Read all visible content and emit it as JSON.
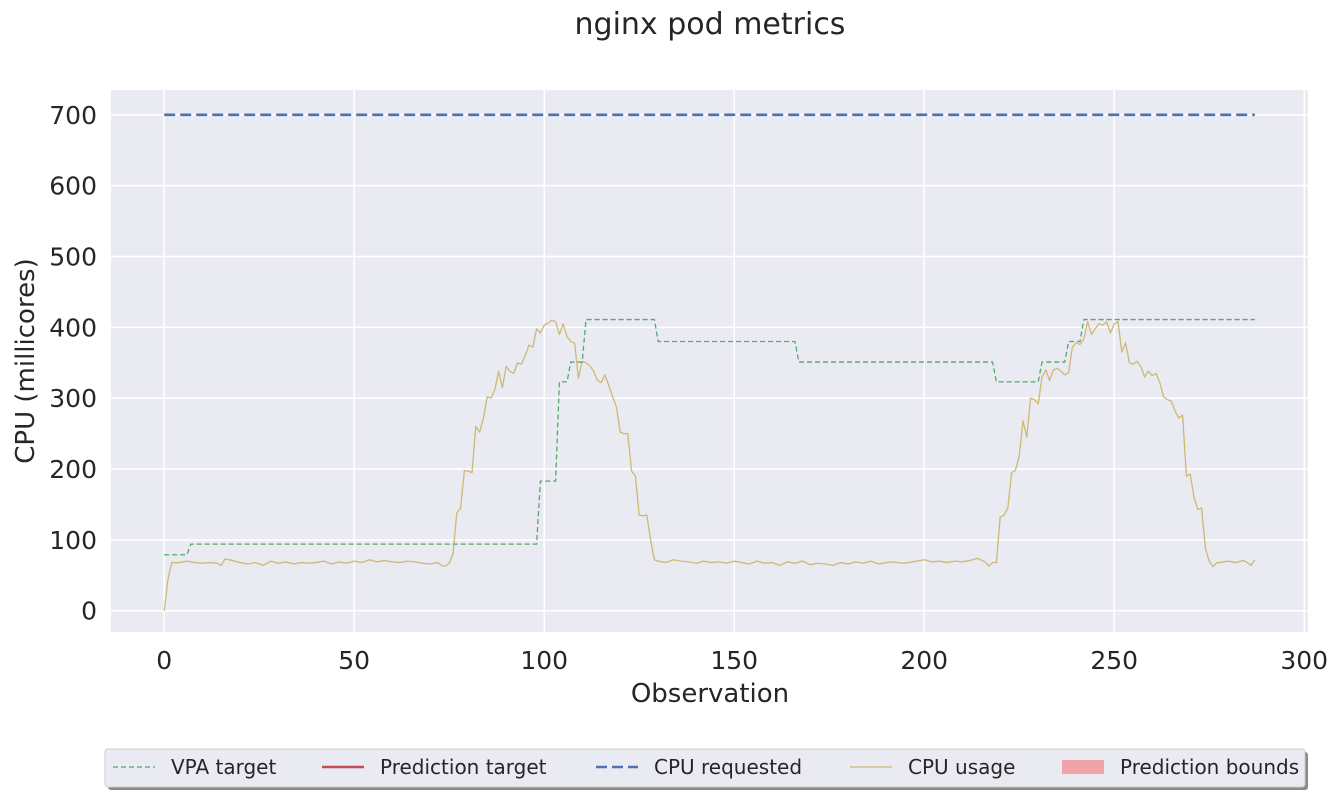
{
  "chart_data": {
    "type": "line",
    "title": "nginx pod metrics",
    "xlabel": "Observation",
    "ylabel": "CPU (millicores)",
    "xlim": [
      -14,
      301
    ],
    "ylim": [
      -30,
      735
    ],
    "xticks": [
      0,
      50,
      100,
      150,
      200,
      250,
      300
    ],
    "yticks": [
      0,
      100,
      200,
      300,
      400,
      500,
      600,
      700
    ],
    "grid": true,
    "legend_position": "bottom-center",
    "series": [
      {
        "name": "VPA target",
        "color": "#55a868",
        "style": "dashed-thin",
        "points": [
          [
            0,
            79
          ],
          [
            6,
            79
          ],
          [
            7,
            94
          ],
          [
            98,
            94
          ],
          [
            99,
            183
          ],
          [
            103,
            183
          ],
          [
            104,
            323
          ],
          [
            106,
            323
          ],
          [
            107,
            351
          ],
          [
            110,
            351
          ],
          [
            111,
            411
          ],
          [
            129,
            411
          ],
          [
            130,
            380
          ],
          [
            166,
            380
          ],
          [
            167,
            351
          ],
          [
            218,
            351
          ],
          [
            219,
            323
          ],
          [
            230,
            323
          ],
          [
            231,
            351
          ],
          [
            237,
            351
          ],
          [
            238,
            380
          ],
          [
            241,
            380
          ],
          [
            242,
            411
          ],
          [
            287,
            411
          ]
        ]
      },
      {
        "name": "Prediction target",
        "color": "#c44e52",
        "style": "solid",
        "points": []
      },
      {
        "name": "CPU requested",
        "color": "#4c72b0",
        "style": "dashed-thick",
        "points": [
          [
            0,
            700
          ],
          [
            287,
            700
          ]
        ]
      },
      {
        "name": "CPU usage",
        "color": "#ccb974",
        "style": "solid-thin",
        "points": [
          [
            0,
            0
          ],
          [
            1,
            45
          ],
          [
            2,
            68
          ],
          [
            4,
            68
          ],
          [
            6,
            70
          ],
          [
            8,
            68
          ],
          [
            10,
            67
          ],
          [
            12,
            68
          ],
          [
            14,
            67
          ],
          [
            15,
            64
          ],
          [
            16,
            73
          ],
          [
            18,
            71
          ],
          [
            20,
            68
          ],
          [
            22,
            66
          ],
          [
            24,
            68
          ],
          [
            26,
            64
          ],
          [
            28,
            70
          ],
          [
            30,
            67
          ],
          [
            32,
            69
          ],
          [
            34,
            66
          ],
          [
            36,
            68
          ],
          [
            38,
            67
          ],
          [
            40,
            68
          ],
          [
            42,
            70
          ],
          [
            44,
            66
          ],
          [
            46,
            69
          ],
          [
            48,
            67
          ],
          [
            50,
            70
          ],
          [
            52,
            68
          ],
          [
            54,
            72
          ],
          [
            56,
            69
          ],
          [
            58,
            71
          ],
          [
            60,
            69
          ],
          [
            62,
            68
          ],
          [
            64,
            70
          ],
          [
            66,
            69
          ],
          [
            68,
            67
          ],
          [
            70,
            66
          ],
          [
            72,
            68
          ],
          [
            73,
            64
          ],
          [
            74,
            63
          ],
          [
            75,
            67
          ],
          [
            76,
            80
          ],
          [
            77,
            138
          ],
          [
            78,
            145
          ],
          [
            79,
            198
          ],
          [
            80,
            197
          ],
          [
            81,
            195
          ],
          [
            82,
            260
          ],
          [
            83,
            252
          ],
          [
            84,
            272
          ],
          [
            85,
            302
          ],
          [
            86,
            300
          ],
          [
            87,
            312
          ],
          [
            88,
            338
          ],
          [
            89,
            315
          ],
          [
            90,
            345
          ],
          [
            91,
            338
          ],
          [
            92,
            335
          ],
          [
            93,
            350
          ],
          [
            94,
            348
          ],
          [
            95,
            360
          ],
          [
            96,
            375
          ],
          [
            97,
            372
          ],
          [
            98,
            398
          ],
          [
            99,
            392
          ],
          [
            100,
            403
          ],
          [
            101,
            406
          ],
          [
            102,
            410
          ],
          [
            103,
            408
          ],
          [
            104,
            390
          ],
          [
            105,
            405
          ],
          [
            106,
            387
          ],
          [
            107,
            380
          ],
          [
            108,
            378
          ],
          [
            109,
            328
          ],
          [
            110,
            352
          ],
          [
            111,
            350
          ],
          [
            112,
            346
          ],
          [
            113,
            338
          ],
          [
            114,
            325
          ],
          [
            115,
            322
          ],
          [
            116,
            333
          ],
          [
            117,
            318
          ],
          [
            118,
            302
          ],
          [
            119,
            288
          ],
          [
            120,
            252
          ],
          [
            121,
            250
          ],
          [
            122,
            250
          ],
          [
            123,
            197
          ],
          [
            124,
            190
          ],
          [
            125,
            135
          ],
          [
            126,
            134
          ],
          [
            127,
            135
          ],
          [
            128,
            100
          ],
          [
            129,
            72
          ],
          [
            130,
            70
          ],
          [
            132,
            68
          ],
          [
            134,
            72
          ],
          [
            136,
            70
          ],
          [
            138,
            69
          ],
          [
            140,
            67
          ],
          [
            142,
            70
          ],
          [
            144,
            68
          ],
          [
            146,
            69
          ],
          [
            148,
            67
          ],
          [
            150,
            70
          ],
          [
            152,
            68
          ],
          [
            154,
            66
          ],
          [
            156,
            70
          ],
          [
            158,
            67
          ],
          [
            160,
            68
          ],
          [
            162,
            64
          ],
          [
            164,
            69
          ],
          [
            166,
            67
          ],
          [
            168,
            70
          ],
          [
            170,
            65
          ],
          [
            172,
            67
          ],
          [
            174,
            66
          ],
          [
            176,
            64
          ],
          [
            178,
            68
          ],
          [
            180,
            66
          ],
          [
            182,
            69
          ],
          [
            184,
            67
          ],
          [
            186,
            70
          ],
          [
            188,
            66
          ],
          [
            190,
            68
          ],
          [
            192,
            69
          ],
          [
            194,
            67
          ],
          [
            196,
            68
          ],
          [
            198,
            70
          ],
          [
            200,
            72
          ],
          [
            202,
            69
          ],
          [
            204,
            70
          ],
          [
            206,
            68
          ],
          [
            208,
            70
          ],
          [
            210,
            69
          ],
          [
            212,
            71
          ],
          [
            214,
            74
          ],
          [
            216,
            69
          ],
          [
            217,
            63
          ],
          [
            218,
            68
          ],
          [
            219,
            68
          ],
          [
            220,
            132
          ],
          [
            221,
            135
          ],
          [
            222,
            145
          ],
          [
            223,
            195
          ],
          [
            224,
            198
          ],
          [
            225,
            218
          ],
          [
            226,
            268
          ],
          [
            227,
            245
          ],
          [
            228,
            300
          ],
          [
            229,
            298
          ],
          [
            230,
            292
          ],
          [
            231,
            330
          ],
          [
            232,
            340
          ],
          [
            233,
            325
          ],
          [
            234,
            340
          ],
          [
            235,
            342
          ],
          [
            236,
            338
          ],
          [
            237,
            333
          ],
          [
            238,
            336
          ],
          [
            239,
            372
          ],
          [
            240,
            378
          ],
          [
            241,
            376
          ],
          [
            242,
            383
          ],
          [
            243,
            408
          ],
          [
            244,
            390
          ],
          [
            245,
            398
          ],
          [
            246,
            405
          ],
          [
            247,
            403
          ],
          [
            248,
            408
          ],
          [
            249,
            392
          ],
          [
            250,
            405
          ],
          [
            251,
            408
          ],
          [
            252,
            365
          ],
          [
            253,
            378
          ],
          [
            254,
            350
          ],
          [
            255,
            348
          ],
          [
            256,
            352
          ],
          [
            257,
            345
          ],
          [
            258,
            330
          ],
          [
            259,
            338
          ],
          [
            260,
            332
          ],
          [
            261,
            335
          ],
          [
            262,
            322
          ],
          [
            263,
            302
          ],
          [
            264,
            298
          ],
          [
            265,
            296
          ],
          [
            266,
            282
          ],
          [
            267,
            272
          ],
          [
            268,
            276
          ],
          [
            269,
            190
          ],
          [
            270,
            193
          ],
          [
            271,
            160
          ],
          [
            272,
            143
          ],
          [
            273,
            145
          ],
          [
            274,
            88
          ],
          [
            275,
            70
          ],
          [
            276,
            62
          ],
          [
            277,
            68
          ],
          [
            278,
            68
          ],
          [
            280,
            70
          ],
          [
            282,
            68
          ],
          [
            284,
            71
          ],
          [
            285,
            68
          ],
          [
            286,
            64
          ],
          [
            287,
            72
          ]
        ]
      },
      {
        "name": "Prediction bounds",
        "color": "#f0a3a8",
        "style": "fill",
        "points": []
      }
    ]
  }
}
